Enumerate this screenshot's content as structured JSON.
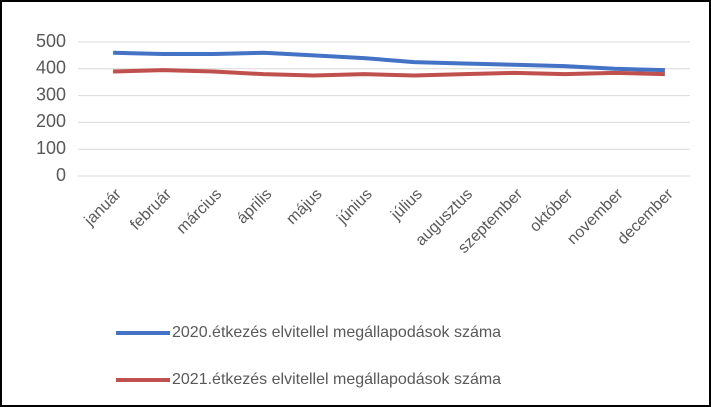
{
  "chart_data": {
    "type": "line",
    "categories": [
      "január",
      "február",
      "március",
      "április",
      "május",
      "június",
      "július",
      "augusztus",
      "szeptember",
      "október",
      "november",
      "december"
    ],
    "series": [
      {
        "name": "2020.étkezés elvitellel megállapodások száma",
        "color": "#4472c4",
        "values": [
          460,
          455,
          455,
          460,
          450,
          440,
          425,
          420,
          415,
          410,
          400,
          395
        ]
      },
      {
        "name": "2021.étkezés elvitellel megállapodások száma",
        "color": "#c0504d",
        "values": [
          390,
          395,
          390,
          380,
          375,
          380,
          375,
          380,
          385,
          380,
          385,
          380
        ]
      }
    ],
    "ylim": [
      0,
      500
    ],
    "yticks": [
      0,
      100,
      200,
      300,
      400,
      500
    ],
    "grid": true,
    "legend": "bottom"
  }
}
